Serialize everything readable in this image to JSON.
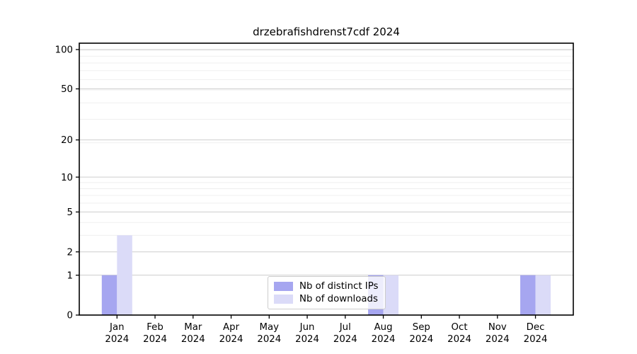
{
  "chart_data": {
    "type": "bar",
    "title": "drzebrafishdrenst7cdf 2024",
    "categories": [
      {
        "label": "Jan",
        "sublabel": "2024"
      },
      {
        "label": "Feb",
        "sublabel": "2024"
      },
      {
        "label": "Mar",
        "sublabel": "2024"
      },
      {
        "label": "Apr",
        "sublabel": "2024"
      },
      {
        "label": "May",
        "sublabel": "2024"
      },
      {
        "label": "Jun",
        "sublabel": "2024"
      },
      {
        "label": "Jul",
        "sublabel": "2024"
      },
      {
        "label": "Aug",
        "sublabel": "2024"
      },
      {
        "label": "Sep",
        "sublabel": "2024"
      },
      {
        "label": "Oct",
        "sublabel": "2024"
      },
      {
        "label": "Nov",
        "sublabel": "2024"
      },
      {
        "label": "Dec",
        "sublabel": "2024"
      }
    ],
    "series": [
      {
        "name": "Nb of distinct IPs",
        "color": "#a6a6f0",
        "values": [
          1,
          0,
          0,
          0,
          0,
          0,
          0,
          1,
          0,
          0,
          0,
          1
        ]
      },
      {
        "name": "Nb of downloads",
        "color": "#dbdbf8",
        "values": [
          3,
          0,
          0,
          0,
          0,
          0,
          0,
          1,
          0,
          0,
          0,
          1
        ]
      }
    ],
    "yticks": [
      0,
      1,
      2,
      5,
      10,
      20,
      50,
      100
    ],
    "minor_grid_values": [
      3,
      4,
      6,
      7,
      8,
      9,
      19,
      29,
      39,
      49,
      59,
      69,
      79,
      89,
      99
    ],
    "scale": "log10(value+1)",
    "ylim": [
      0,
      112
    ],
    "grid": true,
    "legend_position": "lower center",
    "colors": {
      "axis": "#000000",
      "grid_major": "#cdcdcd",
      "grid_minor": "#efefef",
      "legend_border": "#cccccc",
      "tick_label": "#000000"
    }
  }
}
